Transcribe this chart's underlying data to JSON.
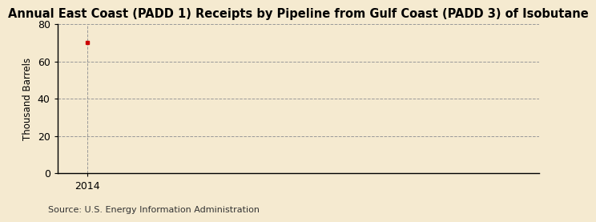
{
  "title": "Annual East Coast (PADD 1) Receipts by Pipeline from Gulf Coast (PADD 3) of Isobutane",
  "ylabel": "Thousand Barrels",
  "source": "Source: U.S. Energy Information Administration",
  "x_data": [
    2014
  ],
  "y_data": [
    70
  ],
  "marker_color": "#cc0000",
  "ylim": [
    0,
    80
  ],
  "xlim": [
    2013.6,
    2020.0
  ],
  "yticks": [
    0,
    20,
    40,
    60,
    80
  ],
  "xticks": [
    2014
  ],
  "background_color": "#f5ead0",
  "plot_bg_color": "#f5ead0",
  "grid_color": "#999999",
  "title_fontsize": 10.5,
  "label_fontsize": 8.5,
  "tick_fontsize": 9,
  "source_fontsize": 8
}
